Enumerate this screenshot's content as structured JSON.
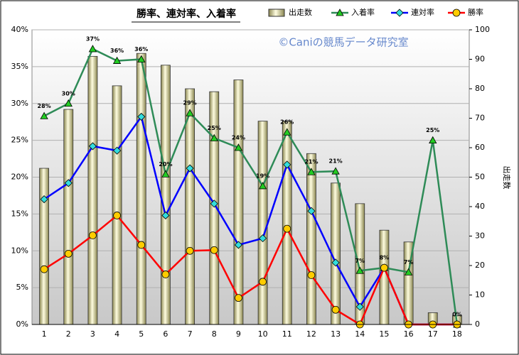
{
  "chart_data": {
    "type": "combo",
    "title": "勝率、連対率、入着率",
    "watermark": "©Caniの競馬データ研究室",
    "y2_label": "出走数",
    "categories": [
      "1",
      "2",
      "3",
      "4",
      "5",
      "6",
      "7",
      "8",
      "9",
      "10",
      "11",
      "12",
      "13",
      "14",
      "15",
      "16",
      "17",
      "18"
    ],
    "ylim": [
      0,
      40
    ],
    "yticks": [
      {
        "value": 0,
        "label": "0%"
      },
      {
        "value": 5,
        "label": "5%"
      },
      {
        "value": 10,
        "label": "10%"
      },
      {
        "value": 15,
        "label": "15%"
      },
      {
        "value": 20,
        "label": "20%"
      },
      {
        "value": 25,
        "label": "25%"
      },
      {
        "value": 30,
        "label": "30%"
      },
      {
        "value": 35,
        "label": "35%"
      },
      {
        "value": 40,
        "label": "40%"
      }
    ],
    "y2lim": [
      0,
      100
    ],
    "y2ticks": [
      0,
      10,
      20,
      30,
      40,
      50,
      60,
      70,
      80,
      90,
      100
    ],
    "grid": true,
    "series": [
      {
        "name": "出走数",
        "type": "bar",
        "axis": "y2",
        "color": "#f0ecb0",
        "values": [
          53,
          73,
          91,
          81,
          92,
          88,
          80,
          79,
          83,
          69,
          69,
          58,
          48,
          41,
          32,
          28,
          4,
          3
        ]
      },
      {
        "name": "入着率",
        "type": "line",
        "marker": "triangle",
        "color": "#2e8b57",
        "marker_color": "#22cc22",
        "values": [
          28.3,
          30,
          37.4,
          35.8,
          36,
          20.4,
          28.7,
          25.3,
          24,
          18.8,
          26.1,
          20.7,
          20.8,
          7.3,
          7.7,
          7.1,
          25,
          0
        ],
        "value_labels": [
          "28%",
          "30%",
          "37%",
          "36%",
          "36%",
          "20%",
          "29%",
          "25%",
          "24%",
          "19%",
          "26%",
          "21%",
          "21%",
          "7%",
          "8%",
          "7%",
          "25%",
          "0%"
        ]
      },
      {
        "name": "連対率",
        "type": "line",
        "marker": "diamond",
        "color": "#0000ff",
        "marker_color": "#33dddd",
        "values": [
          17,
          19.2,
          24.2,
          23.6,
          28.2,
          14.8,
          21.2,
          16.4,
          10.8,
          11.7,
          21.7,
          15.4,
          8.4,
          2.4,
          7.7,
          0,
          0,
          0
        ]
      },
      {
        "name": "勝率",
        "type": "line",
        "marker": "circle",
        "color": "#ff0000",
        "marker_color": "#ffcc00",
        "values": [
          7.5,
          9.6,
          12.1,
          14.8,
          10.8,
          6.8,
          10,
          10.1,
          3.6,
          5.8,
          13,
          6.7,
          2,
          0,
          7.7,
          0,
          0,
          0
        ]
      }
    ]
  }
}
